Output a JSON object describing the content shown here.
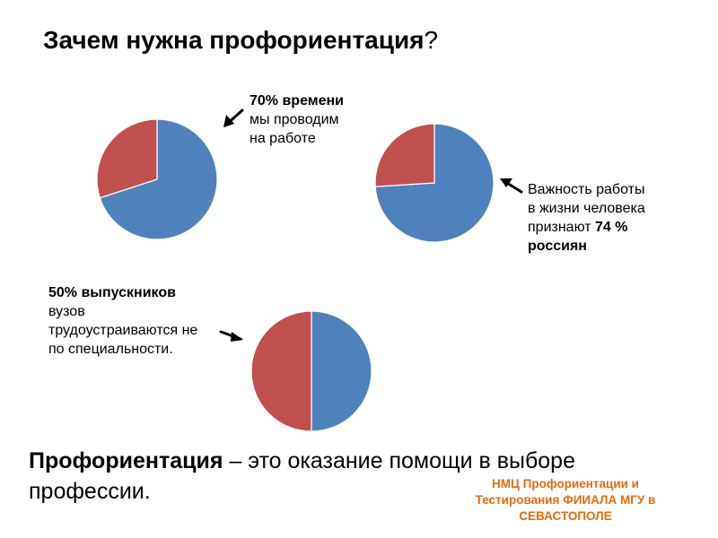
{
  "colors": {
    "blue": "#4F81BD",
    "red": "#C0504D",
    "orange": "#E46C0A"
  },
  "title": {
    "main": "Зачем нужна профориентация",
    "mark": "?"
  },
  "chart_data": [
    {
      "type": "pie",
      "slices": [
        {
          "value": 70,
          "color": "#4F81BD"
        },
        {
          "value": 30,
          "color": "#C0504D"
        }
      ],
      "annotation": {
        "lines": [
          {
            "em": "70% времени",
            "rest": ""
          },
          {
            "em": "",
            "rest": "мы проводим"
          },
          {
            "em": "",
            "rest": "на работе"
          }
        ]
      }
    },
    {
      "type": "pie",
      "slices": [
        {
          "value": 74,
          "color": "#4F81BD"
        },
        {
          "value": 26,
          "color": "#C0504D"
        }
      ],
      "annotation": {
        "lines": [
          {
            "em": "",
            "rest": "Важность работы"
          },
          {
            "em": "",
            "rest": "в жизни человека"
          },
          {
            "em": "74 %",
            "rest": "признают "
          },
          {
            "em": "россиян",
            "rest": ""
          }
        ]
      }
    },
    {
      "type": "pie",
      "slices": [
        {
          "value": 50,
          "color": "#4F81BD"
        },
        {
          "value": 50,
          "color": "#C0504D"
        }
      ],
      "annotation": {
        "lines": [
          {
            "em": "50% выпускников",
            "rest": ""
          },
          {
            "em": "",
            "rest": "вузов"
          },
          {
            "em": "",
            "rest": "трудоустраиваются не"
          },
          {
            "em": "",
            "rest": "по специальности."
          }
        ]
      }
    }
  ],
  "definition": {
    "term": "Профориентация",
    "rest": " – это оказание помощи в выборе профессии."
  },
  "organization": {
    "lines": [
      "НМЦ Профориентации и",
      "Тестирования ФИИАЛА МГУ в",
      "СЕВАСТОПОЛЕ"
    ]
  }
}
